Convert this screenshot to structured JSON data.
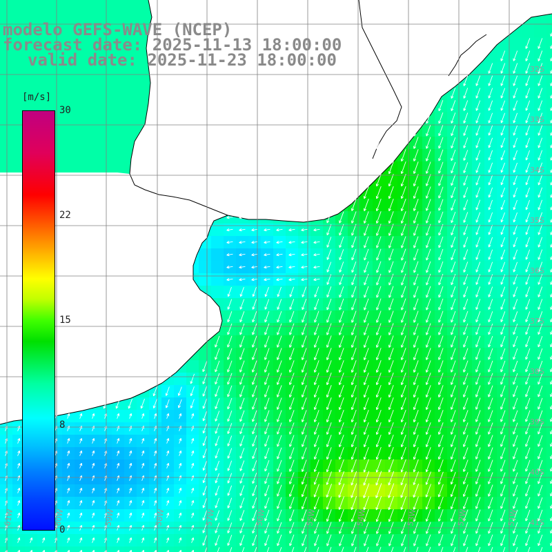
{
  "header": {
    "model_line": "modelo GEFS-WAVE (NCEP)",
    "forecast_line": "forecast date: 2025-11-13 18:00:00",
    "valid_line": "valid date: 2025-11-23 18:00:00"
  },
  "colorbar": {
    "unit": "[m/s]",
    "ticks": [
      "30",
      "22",
      "15",
      "8",
      "0"
    ],
    "tick_values": [
      30,
      22,
      15,
      8,
      0
    ],
    "range": [
      0,
      30
    ],
    "colors": [
      "#0010ff",
      "#00ffff",
      "#00e000",
      "#ffff00",
      "#ff0000",
      "#c00080"
    ]
  },
  "axes": {
    "lat_labels": [
      "32S",
      "33S",
      "34S",
      "35S",
      "36S",
      "37S",
      "38S",
      "39S",
      "40S",
      "41S"
    ],
    "lon_labels": [
      "61W",
      "60W",
      "59W",
      "58W",
      "57W",
      "56W",
      "55W",
      "54W",
      "53W",
      "52W",
      "51W"
    ]
  },
  "map": {
    "variable": "wind speed",
    "arrow_color": "#ffffff",
    "coast_color": "#000000",
    "grid_color": "#808080",
    "land_color": "#ffffff"
  }
}
